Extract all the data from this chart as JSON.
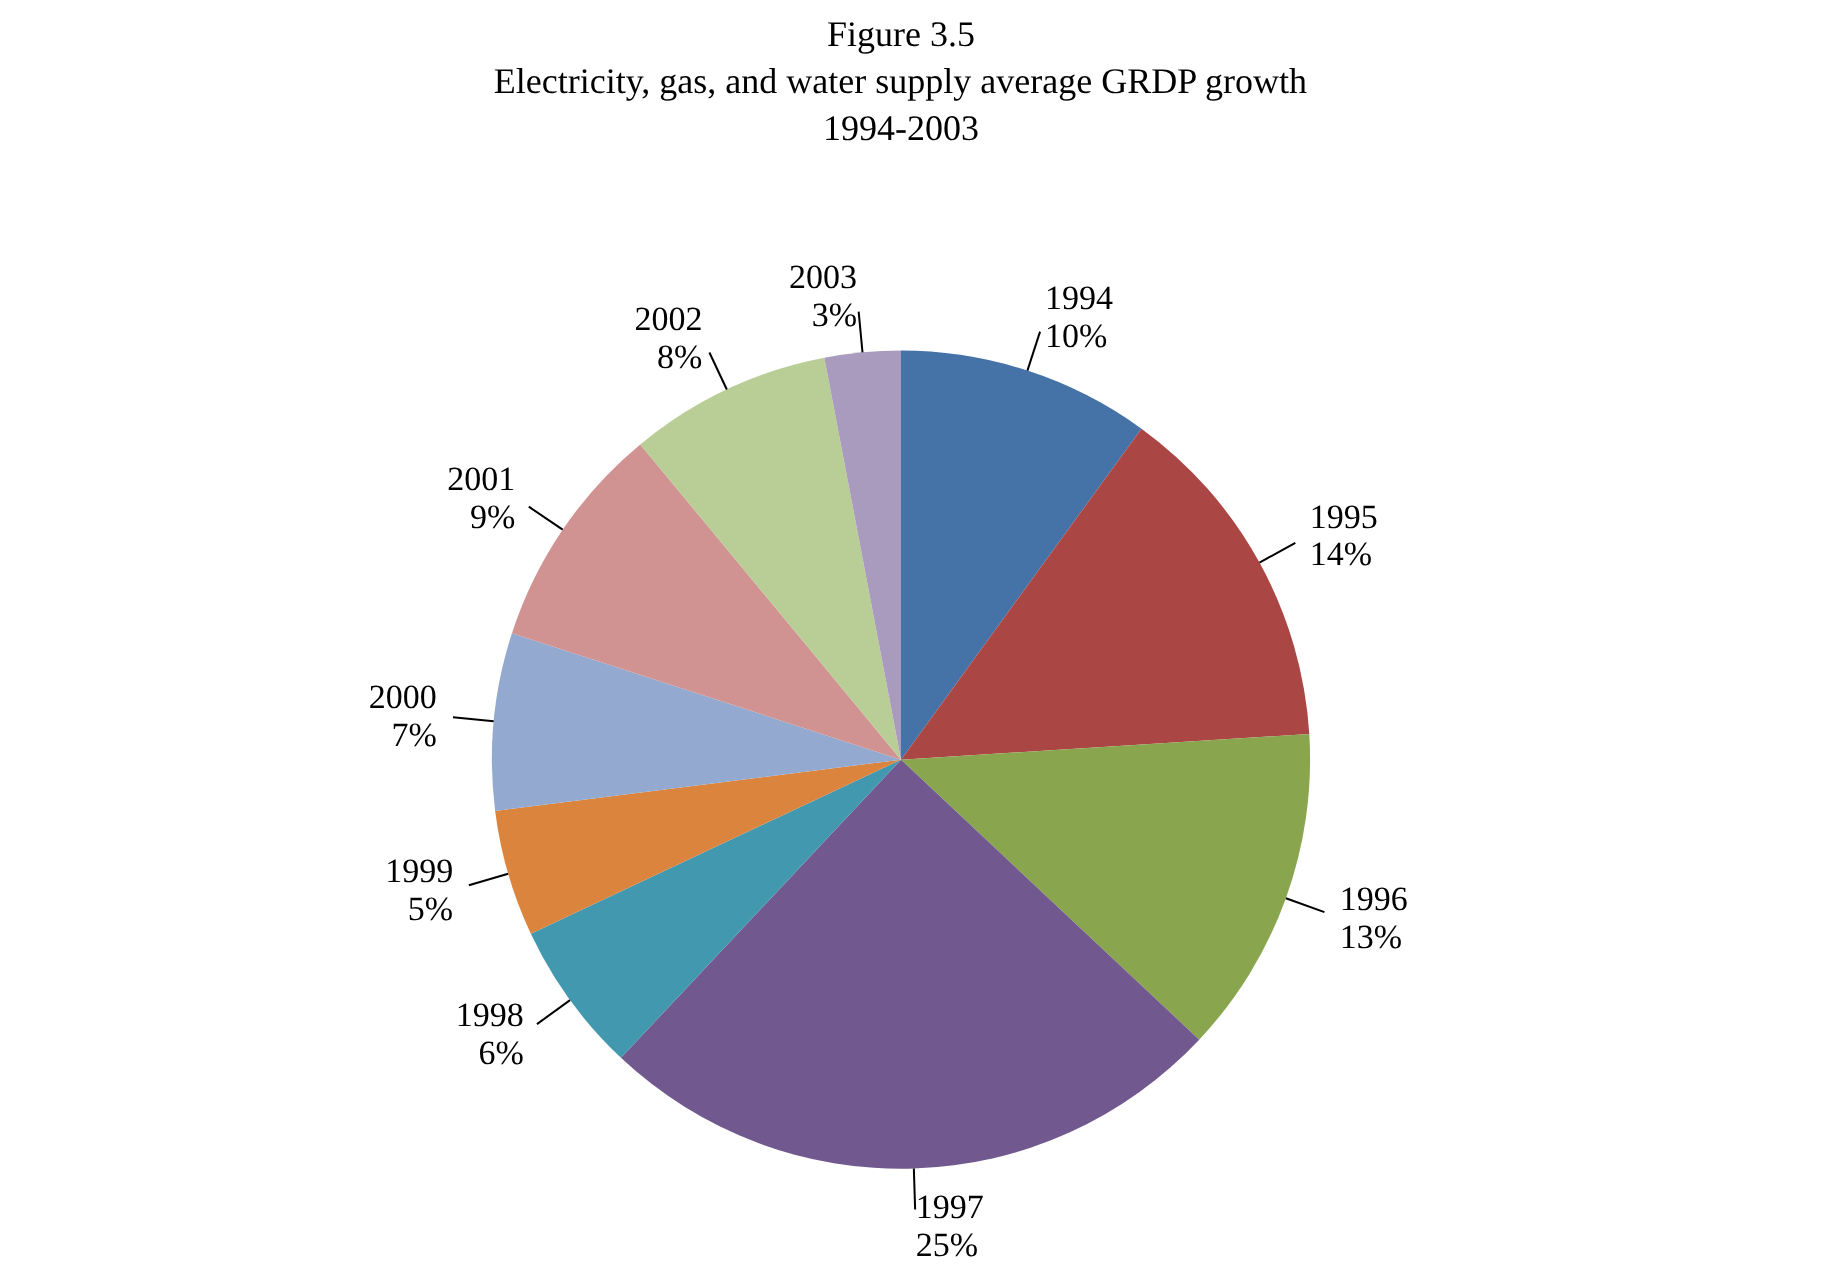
{
  "chart_data": {
    "type": "pie",
    "title": "Figure 3.5",
    "subtitle": "Electricity, gas, and water supply average GRDP growth\n1994-2003",
    "categories": [
      "1994",
      "1995",
      "1996",
      "1997",
      "1998",
      "1999",
      "2000",
      "2001",
      "2002",
      "2003"
    ],
    "values": [
      10,
      14,
      13,
      25,
      6,
      5,
      7,
      9,
      8,
      3
    ],
    "value_labels": [
      "10%",
      "14%",
      "13%",
      "25%",
      "6%",
      "5%",
      "7%",
      "9%",
      "8%",
      "3%"
    ],
    "colors": [
      "#4572a7",
      "#aa4643",
      "#89a54e",
      "#71588f",
      "#4198af",
      "#db843d",
      "#93a9cf",
      "#d19392",
      "#b9cd96",
      "#a99bbd"
    ],
    "legend": false
  }
}
